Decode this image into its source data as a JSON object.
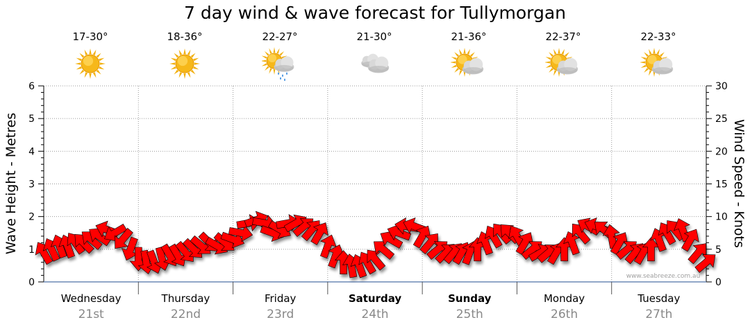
{
  "chart_title": "7 day wind & wave forecast for Tullymorgan",
  "forecast": [
    {
      "temp": "17-30°",
      "icon": "sunny-icon"
    },
    {
      "temp": "18-36°",
      "icon": "sunny-icon"
    },
    {
      "temp": "22-27°",
      "icon": "sun-cloud-rain-icon"
    },
    {
      "temp": "21-30°",
      "icon": "cloudy-icon"
    },
    {
      "temp": "21-36°",
      "icon": "sun-cloud-icon"
    },
    {
      "temp": "22-37°",
      "icon": "sun-cloud-icon"
    },
    {
      "temp": "22-33°",
      "icon": "sun-cloud-icon"
    }
  ],
  "days": [
    {
      "name": "Wednesday",
      "date": "21st",
      "bold": false
    },
    {
      "name": "Thursday",
      "date": "22nd",
      "bold": false
    },
    {
      "name": "Friday",
      "date": "23rd",
      "bold": false
    },
    {
      "name": "Saturday",
      "date": "24th",
      "bold": true
    },
    {
      "name": "Sunday",
      "date": "25th",
      "bold": true
    },
    {
      "name": "Monday",
      "date": "26th",
      "bold": false
    },
    {
      "name": "Tuesday",
      "date": "27th",
      "bold": false
    }
  ],
  "watermark": "www.seabreeze.com.au",
  "colors": {
    "arrow": "#ff0000",
    "arrow_outline": "#000000",
    "grid": "#999999",
    "date": "#888888"
  },
  "chart_data": {
    "type": "line",
    "title": "7 day wind & wave forecast for Tullymorgan",
    "ylabel_left": "Wave Height - Metres",
    "ylabel_right": "Wind Speed - Knots",
    "ylim_left": [
      0,
      6
    ],
    "ylim_right": [
      0,
      30
    ],
    "yticks_left": [
      "0",
      "1",
      "2",
      "3",
      "4",
      "5",
      "6"
    ],
    "yticks_right": [
      "0",
      "5",
      "10",
      "15",
      "20",
      "25",
      "30"
    ],
    "grid": true,
    "series": [
      {
        "name": "Wind Speed - Knots",
        "values": [
          4.5,
          5.0,
          5.5,
          5.5,
          6.0,
          6.0,
          6.5,
          7.0,
          8.0,
          7.5,
          6.5,
          5.0,
          3.5,
          3.0,
          3.0,
          3.5,
          4.0,
          4.0,
          4.5,
          5.0,
          5.5,
          6.0,
          5.5,
          6.0,
          6.5,
          7.5,
          9.0,
          9.5,
          9.0,
          7.5,
          8.0,
          9.0,
          9.0,
          8.5,
          8.0,
          7.5,
          5.5,
          4.0,
          3.0,
          2.5,
          2.5,
          3.0,
          3.5,
          5.0,
          6.5,
          7.5,
          8.5,
          8.5,
          7.0,
          6.0,
          5.0,
          4.5,
          4.5,
          4.5,
          4.5,
          5.0,
          6.0,
          7.0,
          7.5,
          7.5,
          7.0,
          6.0,
          5.0,
          4.5,
          4.5,
          4.5,
          5.0,
          6.0,
          7.5,
          8.5,
          8.5,
          8.0,
          7.0,
          6.0,
          5.0,
          4.5,
          4.5,
          5.0,
          6.5,
          7.5,
          8.0,
          8.0,
          6.5,
          4.5,
          3.0
        ],
        "direction_deg": [
          240,
          245,
          250,
          250,
          235,
          225,
          220,
          215,
          200,
          150,
          130,
          110,
          90,
          80,
          70,
          75,
          60,
          60,
          50,
          45,
          40,
          45,
          30,
          40,
          20,
          10,
          350,
          340,
          10,
          20,
          30,
          350,
          330,
          320,
          310,
          300,
          290,
          290,
          270,
          260,
          250,
          240,
          230,
          220,
          210,
          200,
          190,
          200,
          300,
          310,
          320,
          315,
          310,
          300,
          290,
          270,
          250,
          240,
          230,
          225,
          240,
          300,
          320,
          330,
          320,
          300,
          270,
          250,
          230,
          210,
          200,
          220,
          260,
          300,
          320,
          310,
          300,
          270,
          250,
          240,
          230,
          250,
          300,
          310,
          320
        ]
      }
    ]
  }
}
